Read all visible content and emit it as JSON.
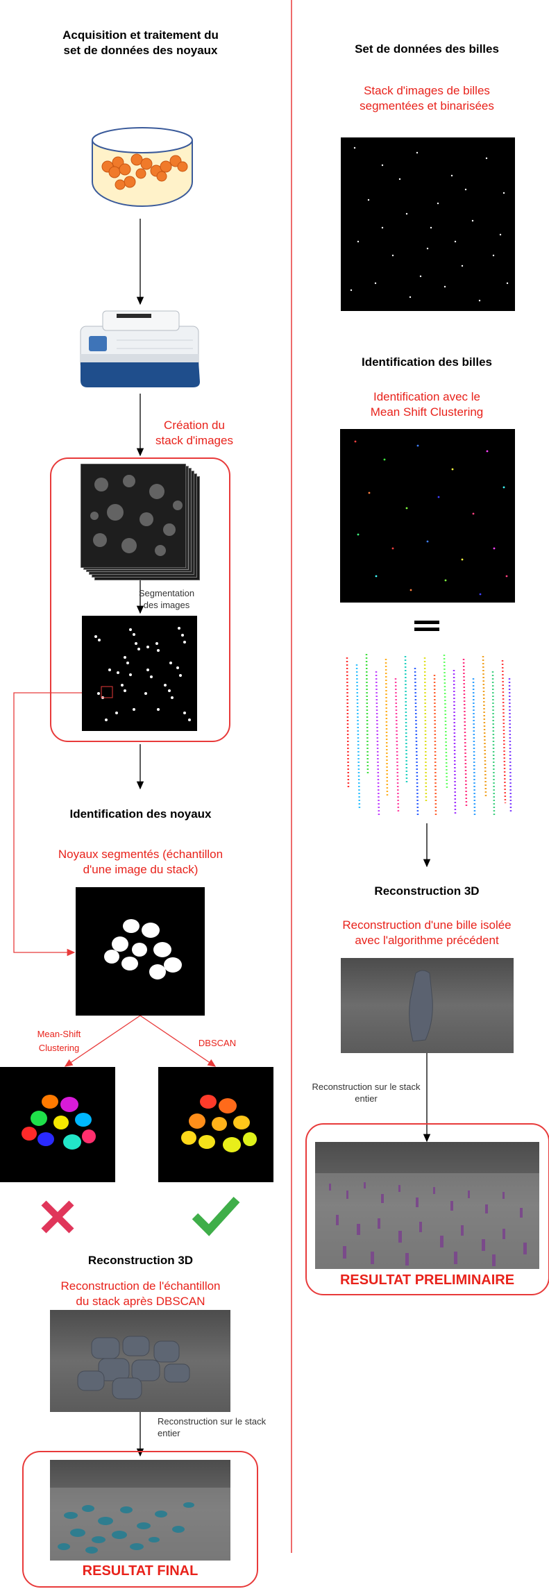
{
  "left": {
    "title": "Acquisition et traitement du\nset de données des noyaux",
    "step_stack": "Création du\nstack d'images",
    "step_segmentation": "Segmentation\ndes images",
    "nuclei_title": "Identification des noyaux",
    "nuclei_sub": "Noyaux segmentés (échantillon\nd'une image du stack)",
    "method_meanshift": "Mean-Shift\nClustering",
    "method_dbscan": "DBSCAN",
    "recon_title": "Reconstruction 3D",
    "recon_sub": "Reconstruction de l'échantillon\ndu stack après DBSCAN",
    "recon_full": "Reconstruction sur le stack\nentier",
    "result": "RESULTAT FINAL"
  },
  "right": {
    "title": "Set de données des billes",
    "stack_sub": "Stack d'images de billes\nsegmentées et binarisées",
    "ident_title": "Identification des billes",
    "ident_sub": "Identification avec le\nMean Shift Clustering",
    "recon_title": "Reconstruction 3D",
    "recon_sub": "Reconstruction d'une bille isolée\navec l'algorithme précédent",
    "recon_full": "Reconstruction sur le stack\nentier",
    "result": "RESULTAT PRELIMINAIRE"
  },
  "colors": {
    "accent": "#e8221b",
    "box_border": "#e83a3a",
    "check": "#3fae49",
    "cross": "#e0365a"
  },
  "icons": [
    "dish-icon",
    "microscope-icon",
    "cross-icon",
    "check-icon",
    "equals-icon"
  ]
}
